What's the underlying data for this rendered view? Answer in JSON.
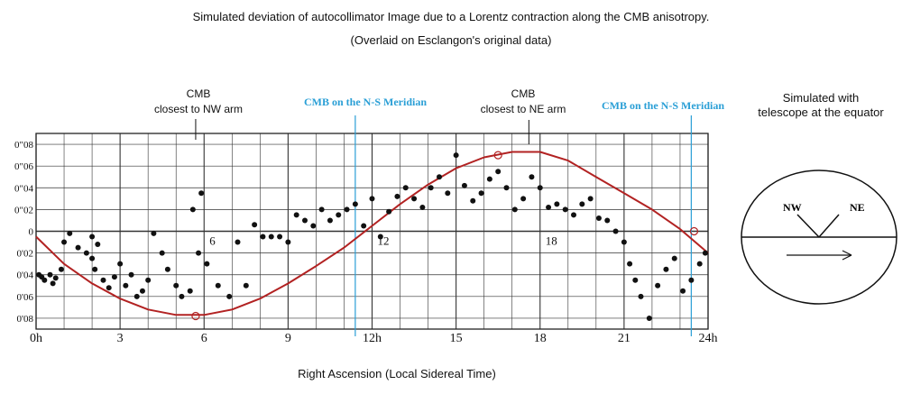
{
  "chart_data": {
    "type": "scatter",
    "title": "Simulated  deviation of autocollimator Image due to a Lorentz  contraction along the CMB anisotropy.",
    "subtitle": "(Overlaid on Esclangon's original data)",
    "xlabel": "Right Ascension (Local Sidereal Time)",
    "ylabel": "",
    "xlim": [
      0,
      24
    ],
    "ylim": [
      -0.09,
      0.09
    ],
    "x_ticks": [
      "0h",
      "3",
      "6",
      "9",
      "12h",
      "15",
      "18",
      "21",
      "24h"
    ],
    "y_ticks": [
      "0\"08",
      "0\"06",
      "0\"04",
      "0\"02",
      "0",
      "0'02",
      "0'04",
      "0'06",
      "0'08"
    ],
    "grid": true,
    "inline_hour_labels": [
      "6",
      "12",
      "18"
    ],
    "series": [
      {
        "name": "",
        "kind": "points",
        "color": "#111111",
        "points": [
          [
            0.1,
            -0.04
          ],
          [
            0.2,
            -0.042
          ],
          [
            0.3,
            -0.045
          ],
          [
            0.5,
            -0.04
          ],
          [
            0.7,
            -0.043
          ],
          [
            0.6,
            -0.048
          ],
          [
            0.9,
            -0.035
          ],
          [
            1.0,
            -0.01
          ],
          [
            1.2,
            -0.002
          ],
          [
            1.5,
            -0.015
          ],
          [
            1.8,
            -0.02
          ],
          [
            2.0,
            -0.005
          ],
          [
            2.0,
            -0.025
          ],
          [
            2.2,
            -0.012
          ],
          [
            2.1,
            -0.035
          ],
          [
            2.4,
            -0.045
          ],
          [
            2.6,
            -0.052
          ],
          [
            2.8,
            -0.042
          ],
          [
            3.0,
            -0.03
          ],
          [
            3.2,
            -0.05
          ],
          [
            3.4,
            -0.04
          ],
          [
            3.6,
            -0.06
          ],
          [
            3.8,
            -0.055
          ],
          [
            4.0,
            -0.045
          ],
          [
            4.2,
            -0.002
          ],
          [
            4.5,
            -0.02
          ],
          [
            4.7,
            -0.035
          ],
          [
            5.0,
            -0.05
          ],
          [
            5.2,
            -0.06
          ],
          [
            5.5,
            -0.055
          ],
          [
            5.6,
            0.02
          ],
          [
            5.8,
            -0.02
          ],
          [
            5.9,
            0.035
          ],
          [
            6.1,
            -0.03
          ],
          [
            6.5,
            -0.05
          ],
          [
            6.9,
            -0.06
          ],
          [
            7.2,
            -0.01
          ],
          [
            7.5,
            -0.05
          ],
          [
            7.8,
            0.006
          ],
          [
            8.1,
            -0.005
          ],
          [
            8.4,
            -0.005
          ],
          [
            8.7,
            -0.005
          ],
          [
            9.0,
            -0.01
          ],
          [
            9.3,
            0.015
          ],
          [
            9.6,
            0.01
          ],
          [
            9.9,
            0.005
          ],
          [
            10.2,
            0.02
          ],
          [
            10.5,
            0.01
          ],
          [
            10.8,
            0.015
          ],
          [
            11.1,
            0.02
          ],
          [
            11.4,
            0.025
          ],
          [
            11.7,
            0.005
          ],
          [
            12.0,
            0.03
          ],
          [
            12.3,
            -0.005
          ],
          [
            12.6,
            0.018
          ],
          [
            12.9,
            0.032
          ],
          [
            13.2,
            0.04
          ],
          [
            13.5,
            0.03
          ],
          [
            13.8,
            0.022
          ],
          [
            14.1,
            0.04
          ],
          [
            14.4,
            0.05
          ],
          [
            14.7,
            0.035
          ],
          [
            15.0,
            0.07
          ],
          [
            15.3,
            0.042
          ],
          [
            15.6,
            0.028
          ],
          [
            15.9,
            0.035
          ],
          [
            16.2,
            0.048
          ],
          [
            16.5,
            0.055
          ],
          [
            16.8,
            0.04
          ],
          [
            17.1,
            0.02
          ],
          [
            17.4,
            0.03
          ],
          [
            17.7,
            0.05
          ],
          [
            18.0,
            0.04
          ],
          [
            18.3,
            0.022
          ],
          [
            18.6,
            0.025
          ],
          [
            18.9,
            0.02
          ],
          [
            19.2,
            0.015
          ],
          [
            19.5,
            0.025
          ],
          [
            19.8,
            0.03
          ],
          [
            20.1,
            0.012
          ],
          [
            20.4,
            0.01
          ],
          [
            20.7,
            0.0
          ],
          [
            21.0,
            -0.01
          ],
          [
            21.2,
            -0.03
          ],
          [
            21.4,
            -0.045
          ],
          [
            21.6,
            -0.06
          ],
          [
            21.9,
            -0.08
          ],
          [
            22.2,
            -0.05
          ],
          [
            22.5,
            -0.035
          ],
          [
            22.8,
            -0.025
          ],
          [
            23.1,
            -0.055
          ],
          [
            23.4,
            -0.045
          ],
          [
            23.7,
            -0.03
          ],
          [
            23.9,
            -0.02
          ]
        ]
      },
      {
        "name": "",
        "kind": "curve",
        "color": "#b22222",
        "x": [
          0,
          1,
          2,
          3,
          4,
          5,
          6,
          7,
          8,
          9,
          10,
          11,
          12,
          13,
          14,
          15,
          16,
          17,
          18,
          19,
          20,
          21,
          22,
          23,
          24
        ],
        "y": [
          -0.005,
          -0.03,
          -0.048,
          -0.062,
          -0.072,
          -0.077,
          -0.077,
          -0.072,
          -0.062,
          -0.048,
          -0.032,
          -0.015,
          0.005,
          0.025,
          0.043,
          0.058,
          0.068,
          0.073,
          0.073,
          0.065,
          0.05,
          0.035,
          0.02,
          0.002,
          -0.02
        ]
      }
    ],
    "markers": [
      {
        "x": 5.7,
        "y": -0.078
      },
      {
        "x": 16.5,
        "y": 0.07
      },
      {
        "x": 23.5,
        "y": 0.0
      }
    ],
    "vlines": [
      {
        "x": 11.4,
        "color": "#2a9fd6"
      },
      {
        "x": 23.4,
        "color": "#2a9fd6"
      }
    ],
    "annotations": [
      {
        "text": [
          "CMB",
          "closest to NW arm"
        ],
        "x": 5.7,
        "color": "#111111"
      },
      {
        "text": [
          "CMB on the N-S Meridian"
        ],
        "x": 11.4,
        "color": "#2a9fd6"
      },
      {
        "text": [
          "CMB",
          "closest to NE arm"
        ],
        "x": 17.6,
        "color": "#111111"
      },
      {
        "text": [
          "CMB on the N-S Meridian"
        ],
        "x": 23.4,
        "color": "#2a9fd6"
      }
    ],
    "inset": {
      "title": [
        "Simulated with",
        "telescope at the equator"
      ],
      "labels": [
        "NW",
        "NE"
      ]
    }
  }
}
